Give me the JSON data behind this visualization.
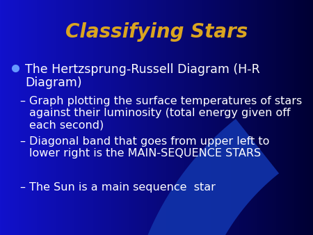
{
  "title": "Classifying Stars",
  "title_color": "#DAA520",
  "title_fontsize": 20,
  "title_italic": true,
  "bg_color_left": "#1111CC",
  "bg_color_right": "#000033",
  "bullet_color": "#6699FF",
  "bullet_text_line1": "The Hertzsprung-Russell Diagram (H-R",
  "bullet_text_line2": "Diagram)",
  "bullet_fontsize": 12.5,
  "sub_bullets": [
    "Graph plotting the surface temperatures of stars\nagainst their luminosity (total energy given off\neach second)",
    "Diagonal band that goes from upper left to\nlower right is the MAIN-SEQUENCE STARS",
    "The Sun is a main sequence  star"
  ],
  "sub_bullet_color": "#FFFFFF",
  "sub_bullet_fontsize": 11.5,
  "swoosh_color": "#3355AA",
  "swoosh2_color": "#1133AA"
}
